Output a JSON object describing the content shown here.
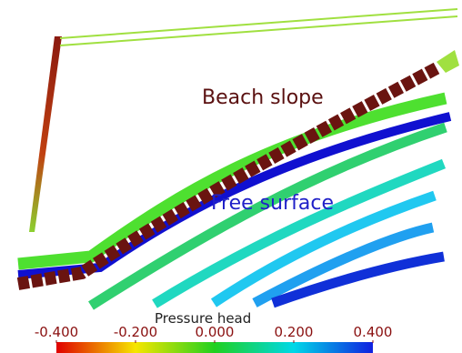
{
  "annotations": {
    "beach_slope": "Beach slope",
    "free_surface": "Free surface"
  },
  "colorbar": {
    "title": "Pressure head",
    "range": [
      -0.4,
      0.4
    ],
    "ticks": [
      {
        "value": -0.4,
        "label": "-0.400"
      },
      {
        "value": -0.2,
        "label": "-0.200"
      },
      {
        "value": 0,
        "label": "0.000"
      },
      {
        "value": 0.2,
        "label": "0.200"
      },
      {
        "value": 0.4,
        "label": "0.400"
      }
    ]
  }
}
